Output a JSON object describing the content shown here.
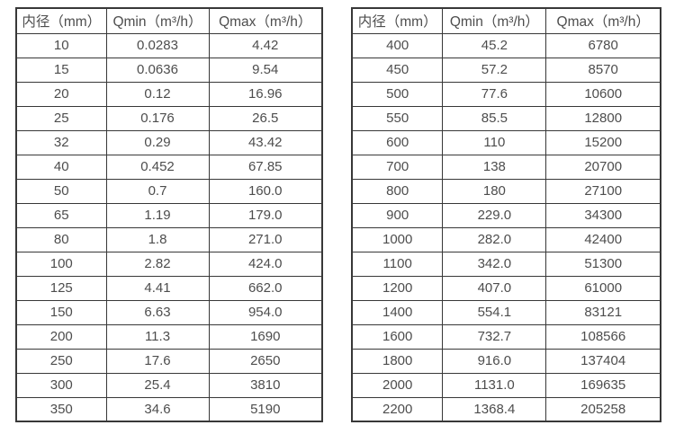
{
  "columns": [
    "内径（mm）",
    "Qmin（m³/h）",
    "Qmax（m³/h）"
  ],
  "left_table": {
    "rows": [
      [
        "10",
        "0.0283",
        "4.42"
      ],
      [
        "15",
        "0.0636",
        "9.54"
      ],
      [
        "20",
        "0.12",
        "16.96"
      ],
      [
        "25",
        "0.176",
        "26.5"
      ],
      [
        "32",
        "0.29",
        "43.42"
      ],
      [
        "40",
        "0.452",
        "67.85"
      ],
      [
        "50",
        "0.7",
        "160.0"
      ],
      [
        "65",
        "1.19",
        "179.0"
      ],
      [
        "80",
        "1.8",
        "271.0"
      ],
      [
        "100",
        "2.82",
        "424.0"
      ],
      [
        "125",
        "4.41",
        "662.0"
      ],
      [
        "150",
        "6.63",
        "954.0"
      ],
      [
        "200",
        "11.3",
        "1690"
      ],
      [
        "250",
        "17.6",
        "2650"
      ],
      [
        "300",
        "25.4",
        "3810"
      ],
      [
        "350",
        "34.6",
        "5190"
      ]
    ]
  },
  "right_table": {
    "rows": [
      [
        "400",
        "45.2",
        "6780"
      ],
      [
        "450",
        "57.2",
        "8570"
      ],
      [
        "500",
        "77.6",
        "10600"
      ],
      [
        "550",
        "85.5",
        "12800"
      ],
      [
        "600",
        "110",
        "15200"
      ],
      [
        "700",
        "138",
        "20700"
      ],
      [
        "800",
        "180",
        "27100"
      ],
      [
        "900",
        "229.0",
        "34300"
      ],
      [
        "1000",
        "282.0",
        "42400"
      ],
      [
        "1100",
        "342.0",
        "51300"
      ],
      [
        "1200",
        "407.0",
        "61000"
      ],
      [
        "1400",
        "554.1",
        "83121"
      ],
      [
        "1600",
        "732.7",
        "108566"
      ],
      [
        "1800",
        "916.0",
        "137404"
      ],
      [
        "2000",
        "1131.0",
        "169635"
      ],
      [
        "2200",
        "1368.4",
        "205258"
      ]
    ]
  },
  "colors": {
    "border": "#383838",
    "text": "#4d4d4d",
    "background": "#ffffff"
  }
}
